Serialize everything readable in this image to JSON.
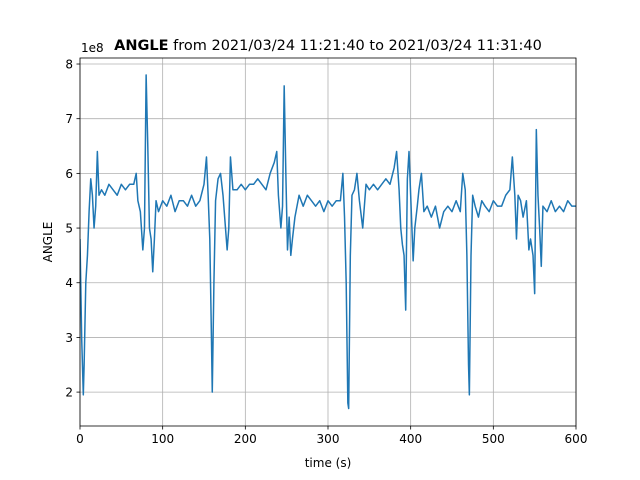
{
  "chart_data": {
    "type": "line",
    "title_bold": "ANGLE",
    "title": "from 2021/03/24 11:21:40 to 2021/03/24 11:31:40",
    "offset_label": "1e8",
    "xlabel": "time (s)",
    "ylabel": "ANGLE",
    "xlim": [
      0,
      600
    ],
    "ylim": [
      1.38,
      8.11
    ],
    "xticks": [
      0,
      100,
      200,
      300,
      400,
      500,
      600
    ],
    "yticks": [
      2,
      3,
      4,
      5,
      6,
      7,
      8
    ],
    "grid": true,
    "series": [
      {
        "name": "ANGLE",
        "color": "#1f77b4",
        "x": [
          0,
          2,
          4,
          5,
          7,
          9,
          11,
          13,
          15,
          17,
          19,
          21,
          23,
          26,
          30,
          35,
          40,
          45,
          50,
          55,
          60,
          65,
          68,
          70,
          73,
          76,
          78,
          80,
          82,
          84,
          86,
          88,
          90,
          92,
          95,
          100,
          105,
          110,
          115,
          120,
          125,
          130,
          135,
          140,
          145,
          150,
          153,
          155,
          157,
          159,
          160,
          162,
          164,
          167,
          170,
          173,
          176,
          178,
          180,
          182,
          185,
          190,
          195,
          200,
          205,
          210,
          215,
          220,
          225,
          230,
          235,
          238,
          240,
          243,
          245,
          247,
          249,
          251,
          253,
          255,
          257,
          260,
          265,
          270,
          275,
          280,
          285,
          290,
          295,
          300,
          305,
          310,
          315,
          318,
          320,
          322,
          324,
          325,
          327,
          329,
          332,
          335,
          338,
          342,
          344,
          346,
          350,
          355,
          360,
          365,
          370,
          375,
          380,
          383,
          386,
          388,
          390,
          392,
          394,
          396,
          398,
          400,
          403,
          405,
          408,
          410,
          413,
          416,
          420,
          425,
          430,
          435,
          440,
          445,
          450,
          455,
          460,
          463,
          466,
          468,
          470,
          471,
          473,
          475,
          478,
          482,
          486,
          490,
          495,
          500,
          505,
          510,
          515,
          520,
          523,
          526,
          528,
          530,
          533,
          536,
          540,
          543,
          545,
          548,
          550,
          552,
          554,
          556,
          558,
          560,
          565,
          570,
          575,
          580,
          585,
          590,
          595,
          600
        ],
        "values": [
          4.8,
          3.0,
          1.95,
          2.5,
          4.0,
          4.5,
          5.3,
          5.9,
          5.6,
          5.0,
          5.4,
          6.4,
          5.6,
          5.7,
          5.6,
          5.8,
          5.7,
          5.6,
          5.8,
          5.7,
          5.8,
          5.8,
          6.0,
          5.5,
          5.3,
          4.6,
          5.0,
          7.8,
          6.5,
          5.0,
          4.8,
          4.2,
          4.8,
          5.5,
          5.3,
          5.5,
          5.4,
          5.6,
          5.3,
          5.5,
          5.5,
          5.4,
          5.6,
          5.4,
          5.5,
          5.8,
          6.3,
          5.6,
          4.8,
          3.0,
          2.0,
          4.0,
          5.5,
          5.9,
          6.0,
          5.6,
          5.0,
          4.6,
          5.0,
          6.3,
          5.7,
          5.7,
          5.8,
          5.7,
          5.8,
          5.8,
          5.9,
          5.8,
          5.7,
          6.0,
          6.2,
          6.4,
          5.6,
          5.0,
          5.4,
          7.6,
          6.0,
          4.6,
          5.2,
          4.5,
          4.8,
          5.2,
          5.6,
          5.4,
          5.6,
          5.5,
          5.4,
          5.5,
          5.3,
          5.5,
          5.4,
          5.5,
          5.5,
          6.0,
          5.2,
          4.0,
          1.8,
          1.7,
          4.5,
          5.6,
          5.7,
          6.0,
          5.5,
          5.0,
          5.4,
          5.8,
          5.7,
          5.8,
          5.7,
          5.8,
          5.9,
          5.8,
          6.1,
          6.4,
          5.7,
          5.0,
          4.7,
          4.5,
          3.5,
          5.9,
          6.4,
          5.6,
          4.4,
          5.0,
          5.4,
          5.7,
          6.0,
          5.3,
          5.4,
          5.2,
          5.4,
          5.0,
          5.3,
          5.4,
          5.3,
          5.5,
          5.3,
          6.0,
          5.7,
          4.5,
          2.5,
          1.95,
          4.5,
          5.6,
          5.4,
          5.2,
          5.5,
          5.4,
          5.3,
          5.5,
          5.4,
          5.4,
          5.6,
          5.7,
          6.3,
          5.6,
          4.8,
          5.6,
          5.5,
          5.2,
          5.5,
          4.6,
          4.8,
          4.5,
          3.8,
          6.8,
          5.6,
          5.0,
          4.3,
          5.4,
          5.3,
          5.5,
          5.3,
          5.4,
          5.3,
          5.5,
          5.4,
          5.4
        ]
      }
    ]
  }
}
